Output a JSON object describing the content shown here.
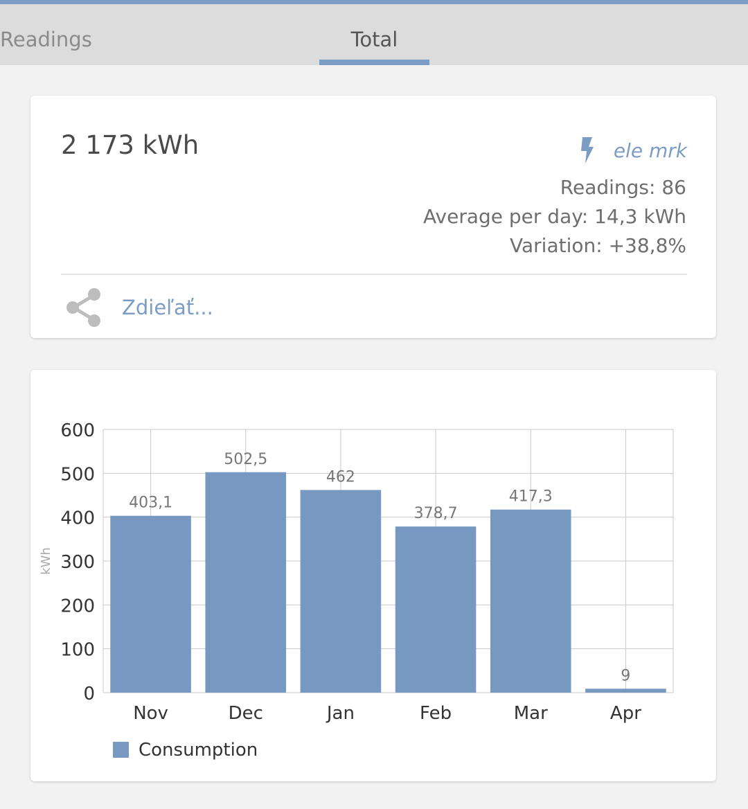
{
  "tabs": {
    "readings": "Readings",
    "total": "Total"
  },
  "summary": {
    "total": "2 173  kWh",
    "meter_name": "ele mrk",
    "readings": "Readings: 86",
    "avg_per_day": "Average per day: 14,3 kWh",
    "variation": "Variation: +38,8%",
    "share_label": "Zdieľať..."
  },
  "colors": {
    "accent": "#7b9cc4",
    "bar": "#7799c1"
  },
  "chart_data": {
    "type": "bar",
    "categories": [
      "Nov",
      "Dec",
      "Jan",
      "Feb",
      "Mar",
      "Apr"
    ],
    "series": [
      {
        "name": "Consumption",
        "values": [
          403.1,
          502.5,
          462,
          378.7,
          417.3,
          9
        ],
        "labels": [
          "403,1",
          "502,5",
          "462",
          "378,7",
          "417,3",
          "9"
        ]
      }
    ],
    "ylabel": "kWh",
    "ylim": [
      0,
      600
    ],
    "yticks": [
      0,
      100,
      200,
      300,
      400,
      500,
      600
    ],
    "grid": true,
    "legend_position": "bottom-left"
  }
}
